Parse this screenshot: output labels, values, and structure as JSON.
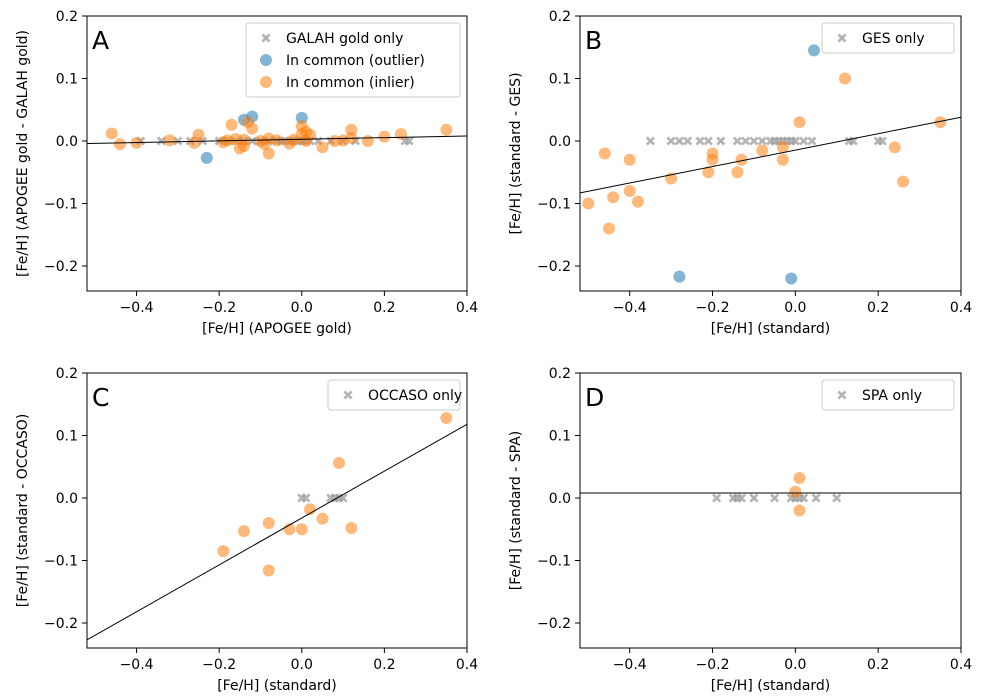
{
  "chart_data": [
    {
      "panel": "A",
      "type": "scatter",
      "xlabel": "[Fe/H] (APOGEE gold)",
      "ylabel": "[Fe/H] (APOGEE gold - GALAH gold)",
      "xlim": [
        -0.52,
        0.4
      ],
      "ylim": [
        -0.24,
        0.2
      ],
      "xticks": [
        -0.4,
        -0.2,
        0.0,
        0.2,
        0.4
      ],
      "xtick_labels": [
        "−0.4",
        "−0.2",
        "0.0",
        "0.2",
        "0.4"
      ],
      "yticks": [
        -0.2,
        -0.1,
        0.0,
        0.1,
        0.2
      ],
      "ytick_labels": [
        "−0.2",
        "−0.1",
        "0.0",
        "0.1",
        "0.2"
      ],
      "legend": "top-right",
      "fit_line": {
        "x": [
          -0.52,
          0.4
        ],
        "y": [
          -0.004,
          0.008
        ]
      },
      "series": [
        {
          "name": "GALAH gold only",
          "marker": "x",
          "color": "#999999",
          "x": [
            -0.39,
            -0.34,
            -0.3,
            -0.27,
            -0.24,
            -0.2,
            -0.18,
            -0.16,
            -0.14,
            -0.12,
            -0.1,
            -0.08,
            -0.06,
            -0.05,
            -0.04,
            -0.03,
            -0.02,
            -0.01,
            0.0,
            0.01,
            0.02,
            0.04,
            0.07,
            0.1,
            0.13,
            0.25,
            0.26
          ],
          "y": [
            0,
            0,
            0,
            0,
            0,
            0,
            0,
            0,
            0,
            0,
            0,
            0,
            0,
            0,
            0,
            0,
            0,
            0,
            0,
            0,
            0,
            0,
            0,
            0,
            0,
            0,
            0
          ]
        },
        {
          "name": "In common (outlier)",
          "marker": "o",
          "color": "#1f77b4",
          "x": [
            -0.23,
            -0.14,
            -0.12,
            0.0
          ],
          "y": [
            -0.027,
            0.034,
            0.039,
            0.037
          ]
        },
        {
          "name": "In common (inlier)",
          "marker": "o",
          "color": "#ff7f0e",
          "x": [
            -0.46,
            -0.44,
            -0.4,
            -0.32,
            -0.26,
            -0.25,
            -0.19,
            -0.18,
            -0.17,
            -0.16,
            -0.15,
            -0.14,
            -0.14,
            -0.13,
            -0.12,
            -0.1,
            -0.09,
            -0.08,
            -0.08,
            -0.06,
            -0.03,
            -0.02,
            0.0,
            0.0,
            0.01,
            0.01,
            0.02,
            0.05,
            0.08,
            0.1,
            0.12,
            0.12,
            0.16,
            0.2,
            0.24,
            0.35
          ],
          "y": [
            0.012,
            -0.005,
            -0.003,
            0.001,
            -0.003,
            0.01,
            -0.002,
            0.001,
            0.026,
            0.003,
            -0.012,
            -0.008,
            0.002,
            0.03,
            0.02,
            0.0,
            -0.005,
            -0.02,
            0.004,
            0.001,
            -0.004,
            0.002,
            0.011,
            0.024,
            0.015,
            0.0,
            0.01,
            -0.01,
            0.0,
            0.001,
            0.018,
            0.005,
            0.0,
            0.007,
            0.011,
            0.018
          ]
        }
      ]
    },
    {
      "panel": "B",
      "type": "scatter",
      "xlabel": "[Fe/H] (standard)",
      "ylabel": "[Fe/H] (standard - GES)",
      "xlim": [
        -0.52,
        0.4
      ],
      "ylim": [
        -0.24,
        0.2
      ],
      "xticks": [
        -0.4,
        -0.2,
        0.0,
        0.2,
        0.4
      ],
      "xtick_labels": [
        "−0.4",
        "−0.2",
        "0.0",
        "0.2",
        "0.4"
      ],
      "yticks": [
        -0.2,
        -0.1,
        0.0,
        0.1,
        0.2
      ],
      "ytick_labels": [
        "−0.2",
        "−0.1",
        "0.0",
        "0.1",
        "0.2"
      ],
      "legend": "top-right",
      "fit_line": {
        "x": [
          -0.52,
          0.4
        ],
        "y": [
          -0.083,
          0.038
        ]
      },
      "series": [
        {
          "name": "GES only",
          "marker": "x",
          "color": "#999999",
          "x": [
            -0.35,
            -0.3,
            -0.28,
            -0.26,
            -0.23,
            -0.21,
            -0.18,
            -0.14,
            -0.12,
            -0.1,
            -0.08,
            -0.06,
            -0.05,
            -0.04,
            -0.03,
            -0.02,
            -0.01,
            0.0,
            0.02,
            0.04,
            0.13,
            0.14,
            0.2,
            0.21
          ],
          "y": [
            0,
            0,
            0,
            0,
            0,
            0,
            0,
            0,
            0,
            0,
            0,
            0,
            0,
            0,
            0,
            0,
            0,
            0,
            0,
            0,
            0,
            0,
            0,
            0
          ]
        },
        {
          "name": "",
          "marker": "o",
          "color": "#1f77b4",
          "x": [
            -0.28,
            0.045,
            -0.01
          ],
          "y": [
            -0.217,
            0.145,
            -0.22
          ]
        },
        {
          "name": "",
          "marker": "o",
          "color": "#ff7f0e",
          "x": [
            -0.5,
            -0.46,
            -0.45,
            -0.44,
            -0.4,
            -0.4,
            -0.38,
            -0.3,
            -0.2,
            -0.2,
            -0.21,
            -0.14,
            -0.13,
            -0.08,
            -0.03,
            -0.03,
            0.01,
            0.12,
            0.24,
            0.26,
            0.35
          ],
          "y": [
            -0.1,
            -0.02,
            -0.14,
            -0.09,
            -0.03,
            -0.08,
            -0.097,
            -0.06,
            -0.02,
            -0.03,
            -0.05,
            -0.05,
            -0.03,
            -0.015,
            -0.03,
            -0.01,
            0.03,
            0.1,
            -0.01,
            -0.065,
            0.03
          ]
        }
      ]
    },
    {
      "panel": "C",
      "type": "scatter",
      "xlabel": "[Fe/H] (standard)",
      "ylabel": "[Fe/H] (standard - OCCASO)",
      "xlim": [
        -0.52,
        0.4
      ],
      "ylim": [
        -0.24,
        0.2
      ],
      "xticks": [
        -0.4,
        -0.2,
        0.0,
        0.2,
        0.4
      ],
      "xtick_labels": [
        "−0.4",
        "−0.2",
        "0.0",
        "0.2",
        "0.4"
      ],
      "yticks": [
        -0.2,
        -0.1,
        0.0,
        0.1,
        0.2
      ],
      "ytick_labels": [
        "−0.2",
        "−0.1",
        "0.0",
        "0.1",
        "0.2"
      ],
      "legend": "top-right",
      "fit_line": {
        "x": [
          -0.52,
          0.4
        ],
        "y": [
          -0.227,
          0.118
        ]
      },
      "series": [
        {
          "name": "OCCASO only",
          "marker": "x",
          "color": "#999999",
          "x": [
            0.0,
            0.01,
            0.07,
            0.08,
            0.09,
            0.1
          ],
          "y": [
            0,
            0,
            0,
            0,
            0,
            0
          ]
        },
        {
          "name": "",
          "marker": "o",
          "color": "#ff7f0e",
          "x": [
            -0.19,
            -0.14,
            -0.08,
            -0.08,
            -0.03,
            0.0,
            0.02,
            0.05,
            0.09,
            0.12,
            0.35
          ],
          "y": [
            -0.085,
            -0.053,
            -0.04,
            -0.116,
            -0.05,
            -0.05,
            -0.018,
            -0.033,
            0.056,
            -0.048,
            0.128
          ]
        }
      ]
    },
    {
      "panel": "D",
      "type": "scatter",
      "xlabel": "[Fe/H] (standard)",
      "ylabel": "[Fe/H] (standard - SPA)",
      "xlim": [
        -0.52,
        0.4
      ],
      "ylim": [
        -0.24,
        0.2
      ],
      "xticks": [
        -0.4,
        -0.2,
        0.0,
        0.2,
        0.4
      ],
      "xtick_labels": [
        "−0.4",
        "−0.2",
        "0.0",
        "0.2",
        "0.4"
      ],
      "yticks": [
        -0.2,
        -0.1,
        0.0,
        0.1,
        0.2
      ],
      "ytick_labels": [
        "−0.2",
        "−0.1",
        "0.0",
        "0.1",
        "0.2"
      ],
      "legend": "top-right",
      "fit_line": {
        "x": [
          -0.52,
          0.4
        ],
        "y": [
          0.008,
          0.008
        ]
      },
      "series": [
        {
          "name": "SPA only",
          "marker": "x",
          "color": "#999999",
          "x": [
            -0.19,
            -0.15,
            -0.14,
            -0.13,
            -0.1,
            -0.05,
            -0.01,
            0.0,
            0.01,
            0.02,
            0.05,
            0.1
          ],
          "y": [
            0,
            0,
            0,
            0,
            0,
            0,
            0,
            0,
            0,
            0,
            0,
            0
          ]
        },
        {
          "name": "",
          "marker": "o",
          "color": "#ff7f0e",
          "x": [
            0.0,
            0.01,
            0.01
          ],
          "y": [
            0.01,
            0.032,
            -0.02
          ]
        }
      ]
    }
  ]
}
